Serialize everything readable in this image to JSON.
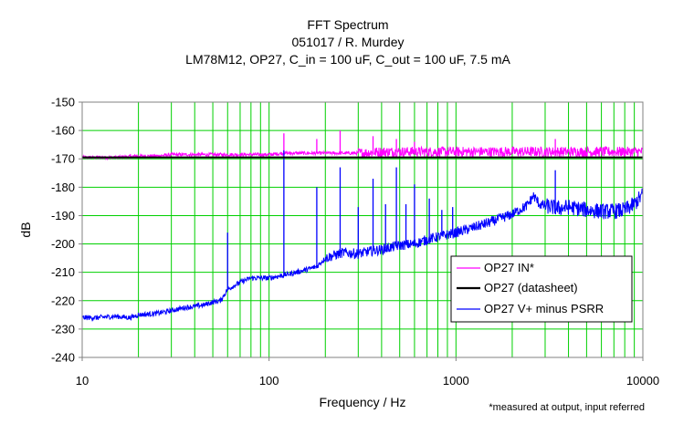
{
  "chart_data": {
    "type": "line",
    "title": [
      "FFT Spectrum",
      "051017 / R. Murdey",
      "LM78M12, OP27, C_in = 100 uF, C_out = 100 uF, 7.5 mA"
    ],
    "xlabel": "Frequency / Hz",
    "ylabel": "dB",
    "x_scale": "log",
    "xlim": [
      10,
      10000
    ],
    "ylim": [
      -240,
      -150
    ],
    "x_ticks": [
      10,
      100,
      1000,
      10000
    ],
    "x_tick_labels": [
      "10",
      "100",
      "1000",
      "10000"
    ],
    "y_ticks": [
      -240,
      -230,
      -220,
      -210,
      -200,
      -190,
      -180,
      -170,
      -160,
      -150
    ],
    "y_tick_labels": [
      "-240",
      "-230",
      "-220",
      "-210",
      "-200",
      "-190",
      "-180",
      "-170",
      "-160",
      "-150"
    ],
    "grid": true,
    "grid_color": "#00d000",
    "legend_position": "bottom-right",
    "footnote": "*measured at output, input referred",
    "series": [
      {
        "name": "OP27 IN*",
        "color": "#ff00ff",
        "x": [
          10,
          12,
          15,
          20,
          25,
          30,
          40,
          50,
          60,
          80,
          100,
          120,
          150,
          200,
          250,
          300,
          400,
          500,
          600,
          800,
          1000,
          1500,
          2000,
          3000,
          4000,
          5000,
          6000,
          8000,
          10000
        ],
        "values": [
          -169.5,
          -169.5,
          -169.5,
          -169,
          -169,
          -168.5,
          -168.5,
          -168.5,
          -168.5,
          -168.5,
          -168.5,
          -168,
          -168,
          -168,
          -168,
          -168,
          -167.5,
          -167.5,
          -167.5,
          -167.5,
          -167.5,
          -167.5,
          -167.5,
          -167.5,
          -167.5,
          -167.5,
          -167.5,
          -167.5,
          -167.5
        ],
        "peaks": [
          {
            "x": 120,
            "y": -161
          },
          {
            "x": 180,
            "y": -163
          },
          {
            "x": 240,
            "y": -160
          },
          {
            "x": 360,
            "y": -162
          },
          {
            "x": 480,
            "y": -163
          },
          {
            "x": 600,
            "y": -164
          },
          {
            "x": 3400,
            "y": -163
          }
        ]
      },
      {
        "name": "OP27 (datasheet)",
        "color": "#000000",
        "x": [
          10,
          10000
        ],
        "values": [
          -169.5,
          -169.5
        ]
      },
      {
        "name": "OP27 V+ minus PSRR",
        "color": "#0000ff",
        "x": [
          10,
          12,
          15,
          18,
          20,
          25,
          30,
          35,
          40,
          45,
          50,
          55,
          60,
          70,
          80,
          90,
          100,
          110,
          130,
          150,
          180,
          200,
          250,
          300,
          350,
          400,
          500,
          600,
          700,
          800,
          1000,
          1200,
          1500,
          2000,
          2400,
          2600,
          2800,
          3000,
          3500,
          4000,
          5000,
          6000,
          7000,
          8000,
          9000,
          10000
        ],
        "values": [
          -226,
          -226,
          -225.5,
          -226,
          -225,
          -224.5,
          -223.5,
          -222.5,
          -222,
          -221.5,
          -220.5,
          -220,
          -216,
          -213.5,
          -212,
          -212,
          -212,
          -211.5,
          -210.5,
          -209.5,
          -208,
          -205,
          -203,
          -203.5,
          -202.5,
          -202,
          -200.5,
          -200,
          -198.5,
          -197.5,
          -196,
          -194.5,
          -192.5,
          -189.5,
          -186.5,
          -183,
          -186,
          -186.5,
          -187.5,
          -187,
          -188,
          -188.5,
          -188.5,
          -188,
          -186,
          -182.5
        ],
        "peaks": [
          {
            "x": 60,
            "y": -196
          },
          {
            "x": 120,
            "y": -167
          },
          {
            "x": 180,
            "y": -180
          },
          {
            "x": 240,
            "y": -173
          },
          {
            "x": 300,
            "y": -187
          },
          {
            "x": 360,
            "y": -177
          },
          {
            "x": 420,
            "y": -186
          },
          {
            "x": 480,
            "y": -173
          },
          {
            "x": 540,
            "y": -186
          },
          {
            "x": 600,
            "y": -179
          },
          {
            "x": 720,
            "y": -184
          },
          {
            "x": 840,
            "y": -188
          },
          {
            "x": 960,
            "y": -187
          },
          {
            "x": 3400,
            "y": -174
          }
        ]
      }
    ]
  }
}
